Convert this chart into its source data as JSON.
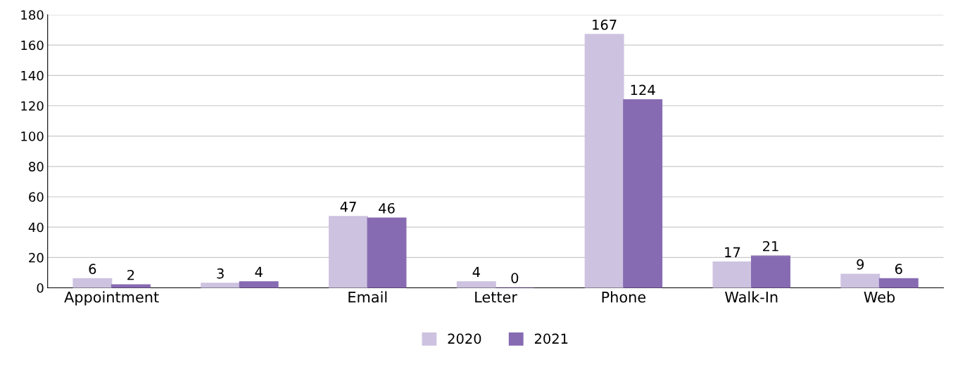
{
  "chart_data": {
    "type": "bar",
    "categories": [
      "Appointment",
      null,
      "Email",
      "Letter",
      "Phone",
      "Walk-In",
      "Web"
    ],
    "series": [
      {
        "name": "2020",
        "color": "#cdc3e0",
        "values": [
          6,
          3,
          47,
          4,
          167,
          17,
          9
        ]
      },
      {
        "name": "2021",
        "color": "#876bb2",
        "values": [
          2,
          4,
          46,
          0,
          124,
          21,
          6
        ]
      }
    ],
    "ylim": [
      0,
      180
    ],
    "yticks": [
      0,
      20,
      40,
      60,
      80,
      100,
      120,
      140,
      160,
      180
    ],
    "grid": "y",
    "legend": "bottom",
    "data_labels": true
  }
}
